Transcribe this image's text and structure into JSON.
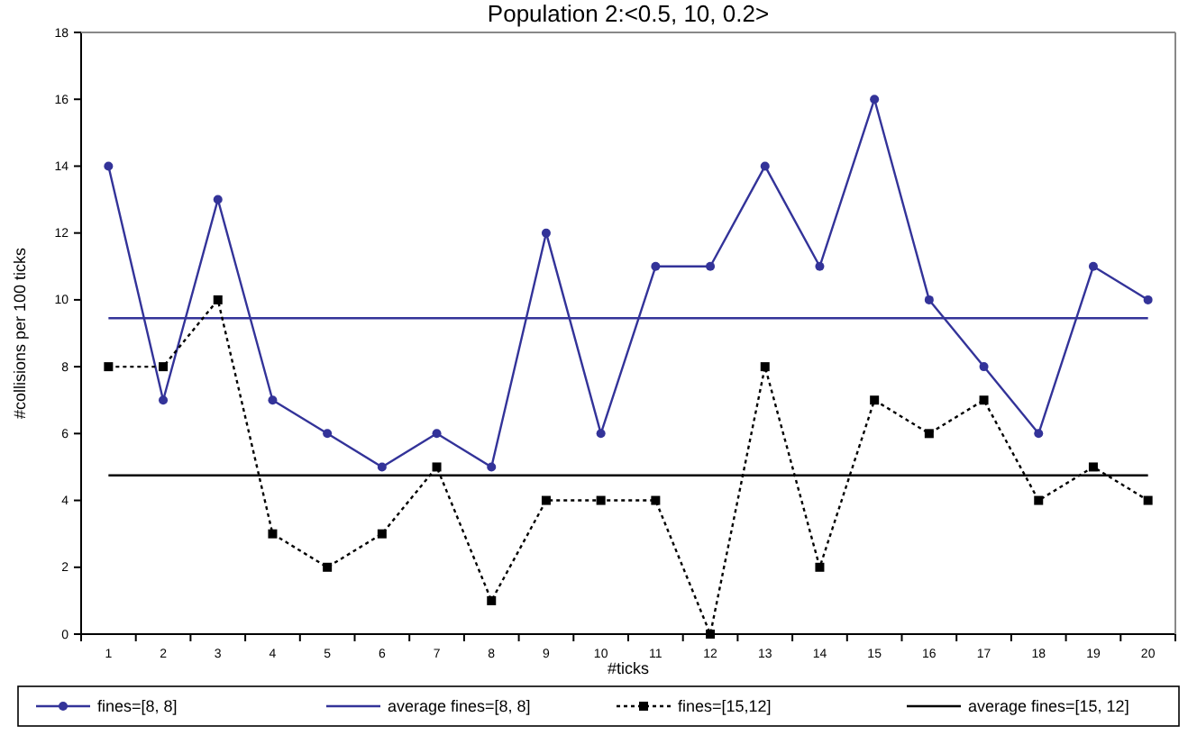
{
  "chart_data": {
    "type": "line",
    "title": "Population 2:<0.5, 10, 0.2>",
    "xlabel": "#ticks",
    "ylabel": "#collisions per 100 ticks",
    "categories": [
      "1",
      "2",
      "3",
      "4",
      "5",
      "6",
      "7",
      "8",
      "9",
      "10",
      "11",
      "12",
      "13",
      "14",
      "15",
      "16",
      "17",
      "18",
      "19",
      "20"
    ],
    "ylim": [
      0,
      18
    ],
    "yticks": [
      0,
      2,
      4,
      6,
      8,
      10,
      12,
      14,
      16,
      18
    ],
    "grid": false,
    "legend": "bottom",
    "series": [
      {
        "name": "fines=[8, 8]",
        "color": "#333399",
        "marker": "circle",
        "line_style": "solid",
        "values": [
          14,
          7,
          13,
          7,
          6,
          5,
          6,
          5,
          12,
          6,
          11,
          11,
          14,
          11,
          16,
          10,
          8,
          6,
          11,
          10
        ]
      },
      {
        "name": "average fines=[8, 8]",
        "color": "#333399",
        "marker": "none",
        "line_style": "solid",
        "values": [
          9.45,
          9.45,
          9.45,
          9.45,
          9.45,
          9.45,
          9.45,
          9.45,
          9.45,
          9.45,
          9.45,
          9.45,
          9.45,
          9.45,
          9.45,
          9.45,
          9.45,
          9.45,
          9.45,
          9.45
        ]
      },
      {
        "name": "fines=[15,12]",
        "color": "#000000",
        "marker": "square",
        "line_style": "dotted",
        "values": [
          8,
          8,
          10,
          3,
          2,
          3,
          5,
          1,
          4,
          4,
          4,
          0,
          8,
          2,
          7,
          6,
          7,
          4,
          5,
          4
        ]
      },
      {
        "name": "average fines=[15, 12]",
        "color": "#000000",
        "marker": "none",
        "line_style": "solid",
        "values": [
          4.75,
          4.75,
          4.75,
          4.75,
          4.75,
          4.75,
          4.75,
          4.75,
          4.75,
          4.75,
          4.75,
          4.75,
          4.75,
          4.75,
          4.75,
          4.75,
          4.75,
          4.75,
          4.75,
          4.75
        ]
      }
    ]
  }
}
